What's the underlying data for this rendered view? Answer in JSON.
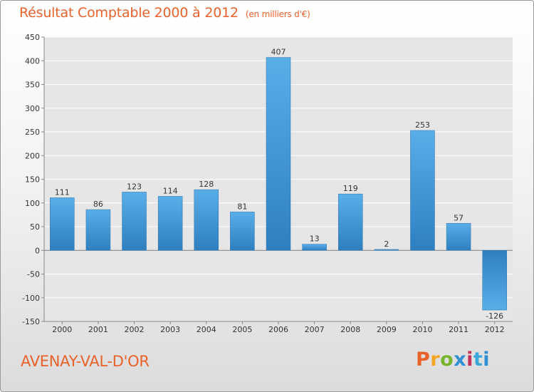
{
  "header": {
    "title": "Résultat Comptable 2000 à 2012",
    "unit": "(en milliers d'€)"
  },
  "footer": {
    "commune": "AVENAY-VAL-D'OR",
    "logo_letters": [
      "P",
      "r",
      "o",
      "x",
      "i",
      "t",
      "i"
    ]
  },
  "colors": {
    "accent": "#e8622a",
    "bar_light": "#5aaee8",
    "bar_dark": "#2f7fbf"
  },
  "chart_data": {
    "type": "bar",
    "title": "Résultat Comptable 2000 à 2012",
    "subtitle": "(en milliers d'€)",
    "xlabel": "",
    "ylabel": "",
    "categories": [
      "2000",
      "2001",
      "2002",
      "2003",
      "2004",
      "2005",
      "2006",
      "2007",
      "2008",
      "2009",
      "2010",
      "2011",
      "2012"
    ],
    "values": [
      111,
      86,
      123,
      114,
      128,
      81,
      407,
      13,
      119,
      2,
      253,
      57,
      -126
    ],
    "data_labels": [
      "111",
      "86",
      "123",
      "114",
      "128",
      "81",
      "407",
      "13",
      "119",
      "2",
      "253",
      "57",
      "-126"
    ],
    "ylim": [
      -150,
      450
    ],
    "yticks": [
      -150,
      -100,
      -50,
      0,
      50,
      100,
      150,
      200,
      250,
      300,
      350,
      400,
      450
    ],
    "ytick_labels": [
      "-150",
      "-100",
      "-50",
      "0",
      "50",
      "100",
      "150",
      "200",
      "250",
      "300",
      "350",
      "400",
      "450"
    ],
    "grid": true,
    "legend": "none"
  }
}
